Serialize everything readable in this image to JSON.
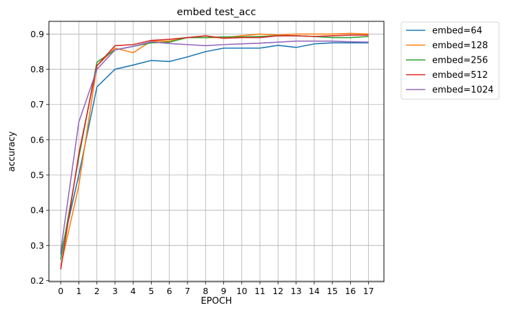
{
  "chart_data": {
    "type": "line",
    "title": "embed test_acc",
    "xlabel": "EPOCH",
    "ylabel": "accuracy",
    "x": [
      0,
      1,
      2,
      3,
      4,
      5,
      6,
      7,
      8,
      9,
      10,
      11,
      12,
      13,
      14,
      15,
      16,
      17
    ],
    "xticks": [
      "0",
      "1",
      "2",
      "3",
      "4",
      "5",
      "6",
      "7",
      "8",
      "9",
      "10",
      "11",
      "12",
      "13",
      "14",
      "15",
      "16",
      "17"
    ],
    "yticks": [
      "0.2",
      "0.3",
      "0.4",
      "0.5",
      "0.6",
      "0.7",
      "0.8",
      "0.9"
    ],
    "xlim": [
      -0.65,
      17.85
    ],
    "ylim": [
      0.197,
      0.936
    ],
    "grid": true,
    "legend_position": "outside-top-right",
    "series": [
      {
        "name": "embed=64",
        "color": "#1f77b4",
        "values": [
          0.275,
          0.5,
          0.75,
          0.8,
          0.812,
          0.825,
          0.822,
          0.835,
          0.85,
          0.86,
          0.86,
          0.86,
          0.868,
          0.862,
          0.872,
          0.875,
          0.875,
          0.875
        ]
      },
      {
        "name": "embed=128",
        "color": "#ff7f0e",
        "values": [
          0.24,
          0.47,
          0.81,
          0.86,
          0.847,
          0.88,
          0.88,
          0.89,
          0.89,
          0.89,
          0.895,
          0.9,
          0.897,
          0.9,
          0.9,
          0.9,
          0.902,
          0.9
        ]
      },
      {
        "name": "embed=256",
        "color": "#2ca02c",
        "values": [
          0.26,
          0.55,
          0.82,
          0.855,
          0.865,
          0.875,
          0.877,
          0.89,
          0.89,
          0.892,
          0.892,
          0.893,
          0.895,
          0.895,
          0.893,
          0.89,
          0.89,
          0.893
        ]
      },
      {
        "name": "embed=512",
        "color": "#d62728",
        "values": [
          0.232,
          0.56,
          0.81,
          0.867,
          0.87,
          0.882,
          0.885,
          0.89,
          0.895,
          0.888,
          0.89,
          0.89,
          0.895,
          0.895,
          0.893,
          0.895,
          0.897,
          0.897
        ]
      },
      {
        "name": "embed=1024",
        "color": "#9467bd",
        "values": [
          0.283,
          0.65,
          0.8,
          0.855,
          0.865,
          0.878,
          0.873,
          0.87,
          0.867,
          0.87,
          0.872,
          0.874,
          0.877,
          0.88,
          0.88,
          0.88,
          0.878,
          0.877
        ]
      }
    ]
  }
}
